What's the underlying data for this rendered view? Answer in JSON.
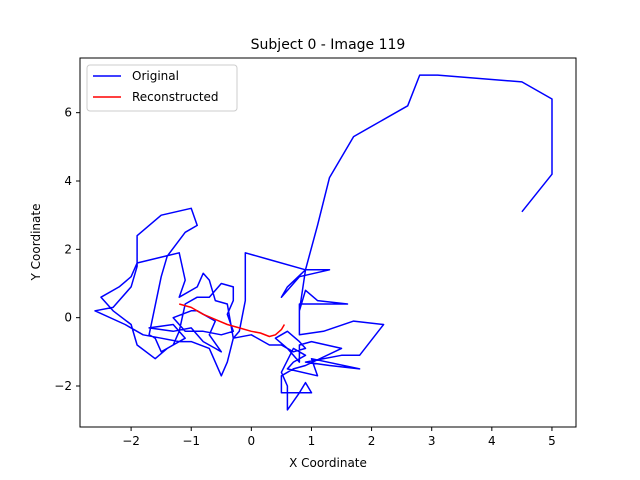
{
  "chart_data": {
    "type": "line",
    "title": "Subject 0 - Image 119",
    "xlabel": "X Coordinate",
    "ylabel": "Y Coordinate",
    "xlim": [
      -2.85,
      5.4
    ],
    "ylim": [
      -3.2,
      7.6
    ],
    "xticks": [
      -2,
      -1,
      0,
      1,
      2,
      3,
      4,
      5
    ],
    "yticks": [
      -2,
      0,
      2,
      4,
      6
    ],
    "grid": false,
    "legend": "top-left",
    "series": [
      {
        "name": "Original",
        "color": "#0000ff",
        "points": [
          [
            4.5,
            3.1
          ],
          [
            5.0,
            4.2
          ],
          [
            5.0,
            6.4
          ],
          [
            4.5,
            6.9
          ],
          [
            3.1,
            7.1
          ],
          [
            2.8,
            7.1
          ],
          [
            2.6,
            6.2
          ],
          [
            1.7,
            5.3
          ],
          [
            1.3,
            4.1
          ],
          [
            1.1,
            2.7
          ],
          [
            0.9,
            1.4
          ],
          [
            0.6,
            0.9
          ],
          [
            0.5,
            0.6
          ],
          [
            0.8,
            1.2
          ],
          [
            1.3,
            1.4
          ],
          [
            0.9,
            1.4
          ],
          [
            0.8,
            0.2
          ],
          [
            0.9,
            0.8
          ],
          [
            1.1,
            0.5
          ],
          [
            1.6,
            0.4
          ],
          [
            0.8,
            0.4
          ],
          [
            0.8,
            -0.5
          ],
          [
            1.2,
            -0.4
          ],
          [
            1.7,
            -0.1
          ],
          [
            2.2,
            -0.2
          ],
          [
            1.8,
            -1.1
          ],
          [
            1.5,
            -1.1
          ],
          [
            0.9,
            -1.3
          ],
          [
            1.3,
            -1.4
          ],
          [
            1.8,
            -1.5
          ],
          [
            1.0,
            -1.2
          ],
          [
            1.1,
            -1.7
          ],
          [
            0.6,
            -1.5
          ],
          [
            0.7,
            -1.3
          ],
          [
            0.9,
            -1.1
          ],
          [
            0.7,
            -0.9
          ],
          [
            0.5,
            -1.6
          ],
          [
            0.6,
            -2.0
          ],
          [
            0.6,
            -2.7
          ],
          [
            0.8,
            -2.2
          ],
          [
            0.9,
            -1.9
          ],
          [
            1.0,
            -2.2
          ],
          [
            0.5,
            -2.2
          ],
          [
            0.5,
            -1.7
          ],
          [
            0.7,
            -1.5
          ],
          [
            0.9,
            -1.4
          ],
          [
            1.5,
            -0.9
          ],
          [
            1.0,
            -0.7
          ],
          [
            0.8,
            -0.8
          ],
          [
            0.8,
            -1.3
          ],
          [
            0.6,
            -0.9
          ],
          [
            0.4,
            -0.6
          ],
          [
            0.6,
            -0.4
          ],
          [
            0.8,
            -0.7
          ],
          [
            0.9,
            -0.9
          ],
          [
            0.7,
            -1.0
          ],
          [
            0.5,
            -0.8
          ],
          [
            0.3,
            -0.8
          ],
          [
            0.0,
            -0.5
          ],
          [
            -0.3,
            -0.6
          ],
          [
            -0.4,
            0.4
          ],
          [
            -0.6,
            0.5
          ],
          [
            -0.7,
            1.1
          ],
          [
            -0.8,
            1.3
          ],
          [
            -0.9,
            0.9
          ],
          [
            -1.2,
            0.6
          ],
          [
            -1.1,
            1.1
          ],
          [
            -1.2,
            1.9
          ],
          [
            -1.9,
            1.6
          ],
          [
            -2.0,
            1.2
          ],
          [
            -2.2,
            0.9
          ],
          [
            -2.5,
            0.6
          ],
          [
            -2.3,
            0.2
          ],
          [
            -2.0,
            -0.2
          ],
          [
            -1.9,
            -0.8
          ],
          [
            -1.6,
            -1.2
          ],
          [
            -1.4,
            -0.9
          ],
          [
            -1.1,
            -0.6
          ],
          [
            -1.3,
            -0.2
          ],
          [
            -1.7,
            -0.3
          ],
          [
            -1.3,
            -0.4
          ],
          [
            -1.0,
            -0.3
          ],
          [
            -0.8,
            -0.7
          ],
          [
            -0.6,
            -0.9
          ],
          [
            -0.5,
            -1.0
          ],
          [
            -0.7,
            -0.5
          ],
          [
            -0.6,
            -0.1
          ],
          [
            -0.9,
            0.2
          ],
          [
            -1.0,
            0.2
          ],
          [
            -1.3,
            0.0
          ],
          [
            -1.1,
            -0.4
          ],
          [
            -0.8,
            -0.4
          ],
          [
            -0.5,
            -0.5
          ],
          [
            -0.3,
            -0.4
          ],
          [
            -0.4,
            0.1
          ],
          [
            -0.3,
            0.5
          ],
          [
            -0.3,
            0.9
          ],
          [
            -0.5,
            1.0
          ],
          [
            -0.7,
            0.6
          ],
          [
            -0.9,
            0.6
          ],
          [
            -1.1,
            0.4
          ],
          [
            -1.2,
            -0.4
          ],
          [
            -1.3,
            -0.8
          ],
          [
            -1.5,
            -1.0
          ],
          [
            -1.6,
            -0.6
          ],
          [
            -1.7,
            -0.5
          ],
          [
            -1.5,
            1.2
          ],
          [
            -1.4,
            1.8
          ],
          [
            -1.1,
            2.5
          ],
          [
            -0.9,
            2.7
          ],
          [
            -1.0,
            3.2
          ],
          [
            -1.5,
            3.0
          ],
          [
            -1.9,
            2.4
          ],
          [
            -1.9,
            1.5
          ],
          [
            -2.0,
            0.9
          ],
          [
            -2.3,
            0.3
          ],
          [
            -2.6,
            0.2
          ],
          [
            -2.1,
            -0.2
          ],
          [
            -1.8,
            -0.5
          ],
          [
            -1.5,
            -0.6
          ],
          [
            -1.2,
            -0.7
          ],
          [
            -1.0,
            -0.7
          ],
          [
            -0.7,
            -0.9
          ],
          [
            -0.5,
            -1.7
          ],
          [
            -0.4,
            -1.3
          ],
          [
            -0.3,
            -0.6
          ],
          [
            -0.2,
            -0.4
          ],
          [
            -0.1,
            0.5
          ],
          [
            -0.1,
            1.9
          ],
          [
            0.3,
            1.7
          ],
          [
            0.9,
            1.4
          ]
        ]
      },
      {
        "name": "Reconstructed",
        "color": "#ff0000",
        "points": [
          [
            -1.2,
            0.4
          ],
          [
            -1.0,
            0.3
          ],
          [
            -0.8,
            0.1
          ],
          [
            -0.6,
            -0.05
          ],
          [
            -0.4,
            -0.2
          ],
          [
            -0.2,
            -0.3
          ],
          [
            0.0,
            -0.4
          ],
          [
            0.15,
            -0.45
          ],
          [
            0.3,
            -0.55
          ],
          [
            0.4,
            -0.5
          ],
          [
            0.5,
            -0.35
          ],
          [
            0.55,
            -0.2
          ]
        ]
      }
    ]
  }
}
